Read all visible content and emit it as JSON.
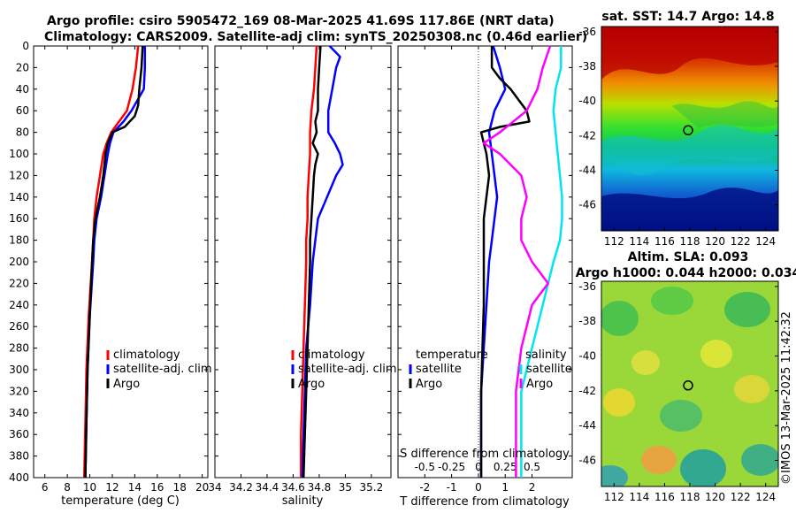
{
  "header": {
    "title_line1": "Argo profile: csiro 5905472_169 08-Mar-2025 41.69S 117.86E (NRT data)",
    "title_line2": "Climatology: CARS2009. Satellite-adj clim: synTS_20250308.nc (0.46d earlier)"
  },
  "colors": {
    "climatology": "#ff0000",
    "satellite": "#0000ff",
    "argo": "#000000",
    "sat_salinity": "#00e5f0",
    "argo_salinity": "#ff00ff"
  },
  "chart_data": [
    {
      "type": "line",
      "name": "temperature-panel",
      "xlabel": "temperature (deg C)",
      "ylabel": "",
      "xlim": [
        5,
        20.5
      ],
      "ylim": [
        400,
        0
      ],
      "xticks": [
        6,
        8,
        10,
        12,
        14,
        16,
        18,
        20
      ],
      "yticks": [
        0,
        20,
        40,
        60,
        80,
        100,
        120,
        140,
        160,
        180,
        200,
        220,
        240,
        260,
        280,
        300,
        320,
        340,
        360,
        380,
        400
      ],
      "legend": [
        "climatology",
        "satellite-adj. clim",
        "Argo"
      ],
      "series": [
        {
          "name": "climatology",
          "color": "#ff0000",
          "depth": [
            0,
            20,
            40,
            60,
            70,
            80,
            90,
            100,
            120,
            140,
            160,
            180,
            200,
            250,
            300,
            350,
            400
          ],
          "values": [
            14.3,
            14.1,
            13.8,
            13.3,
            12.6,
            11.9,
            11.5,
            11.2,
            10.9,
            10.6,
            10.4,
            10.3,
            10.2,
            9.9,
            9.7,
            9.6,
            9.5
          ]
        },
        {
          "name": "satellite-adj. clim",
          "color": "#0000ff",
          "depth": [
            0,
            20,
            40,
            60,
            70,
            80,
            90,
            100,
            120,
            140,
            160,
            180,
            200,
            250,
            300,
            350,
            400
          ],
          "values": [
            14.9,
            14.9,
            14.8,
            13.7,
            13.0,
            12.1,
            11.8,
            11.6,
            11.3,
            11.0,
            10.6,
            10.4,
            10.3,
            10.0,
            9.8,
            9.7,
            9.6
          ]
        },
        {
          "name": "Argo",
          "color": "#000000",
          "depth": [
            0,
            20,
            40,
            55,
            65,
            75,
            80,
            90,
            100,
            110,
            120,
            140,
            160,
            180,
            200,
            250,
            300,
            350,
            400
          ],
          "values": [
            14.7,
            14.6,
            14.4,
            14.3,
            14.0,
            13.1,
            12.0,
            11.6,
            11.4,
            11.3,
            11.2,
            10.9,
            10.5,
            10.3,
            10.2,
            10.0,
            9.8,
            9.7,
            9.6
          ]
        }
      ]
    },
    {
      "type": "line",
      "name": "salinity-panel",
      "xlabel": "salinity",
      "ylabel": "",
      "xlim": [
        34.0,
        35.35
      ],
      "ylim": [
        400,
        0
      ],
      "xticks": [
        34,
        34.2,
        34.4,
        34.6,
        34.8,
        35,
        35.2
      ],
      "legend": [
        "climatology",
        "satellite-adj. clim",
        "Argo"
      ],
      "series": [
        {
          "name": "climatology",
          "color": "#ff0000",
          "depth": [
            0,
            20,
            40,
            60,
            80,
            100,
            120,
            140,
            160,
            180,
            200,
            240,
            280,
            320,
            360,
            400
          ],
          "values": [
            34.78,
            34.77,
            34.76,
            34.74,
            34.73,
            34.73,
            34.72,
            34.71,
            34.71,
            34.7,
            34.7,
            34.69,
            34.68,
            34.67,
            34.66,
            34.66
          ]
        },
        {
          "name": "satellite-adj. clim",
          "color": "#0000ff",
          "depth": [
            0,
            10,
            20,
            40,
            60,
            80,
            90,
            100,
            110,
            120,
            140,
            160,
            180,
            200,
            240,
            280,
            320,
            360,
            400
          ],
          "values": [
            34.88,
            34.96,
            34.93,
            34.9,
            34.87,
            34.87,
            34.92,
            34.96,
            34.98,
            34.93,
            34.86,
            34.79,
            34.77,
            34.75,
            34.73,
            34.7,
            34.69,
            34.68,
            34.67
          ]
        },
        {
          "name": "Argo",
          "color": "#000000",
          "depth": [
            0,
            20,
            40,
            60,
            70,
            80,
            90,
            100,
            110,
            120,
            140,
            160,
            180,
            200,
            240,
            280,
            320,
            360,
            400
          ],
          "values": [
            34.81,
            34.8,
            34.79,
            34.79,
            34.77,
            34.78,
            34.75,
            34.79,
            34.77,
            34.76,
            34.75,
            34.74,
            34.73,
            34.73,
            34.72,
            34.71,
            34.7,
            34.69,
            34.68
          ]
        }
      ]
    },
    {
      "type": "line",
      "name": "difference-panel",
      "xlabel": "T difference from climatology",
      "xlabel2": "S difference from climatology",
      "xlim": [
        -3,
        3.5
      ],
      "ylim": [
        400,
        0
      ],
      "xticks": [
        -2,
        -1,
        0,
        1,
        2
      ],
      "xticks2": [
        "-0.5",
        "-0.25",
        "0",
        "0.25",
        "0.5"
      ],
      "legend_left_title": "temperature",
      "legend_right_title": "salinity",
      "legend": [
        "satellite",
        "Argo",
        "satellite",
        "Argo"
      ],
      "series": [
        {
          "name": "T satellite",
          "color": "#0000ff",
          "depth": [
            0,
            20,
            40,
            60,
            80,
            100,
            120,
            140,
            160,
            180,
            200,
            240,
            280,
            320,
            360,
            400
          ],
          "values": [
            0.55,
            0.8,
            1.0,
            0.6,
            0.4,
            0.5,
            0.6,
            0.7,
            0.6,
            0.5,
            0.4,
            0.3,
            0.2,
            0.1,
            0.1,
            0.1
          ]
        },
        {
          "name": "T Argo",
          "color": "#000000",
          "depth": [
            0,
            20,
            30,
            40,
            50,
            60,
            70,
            75,
            80,
            90,
            100,
            120,
            140,
            160,
            180,
            200,
            240,
            280,
            320,
            360,
            400
          ],
          "values": [
            0.5,
            0.5,
            0.8,
            1.2,
            1.5,
            1.8,
            1.9,
            0.8,
            0.1,
            0.2,
            0.3,
            0.4,
            0.3,
            0.2,
            0.2,
            0.2,
            0.2,
            0.15,
            0.1,
            0.1,
            0.1
          ]
        },
        {
          "name": "S satellite",
          "color": "#00e5f0",
          "depth": [
            0,
            20,
            40,
            60,
            80,
            100,
            120,
            140,
            160,
            180,
            200,
            240,
            280,
            320,
            360,
            400
          ],
          "values": [
            0.77,
            0.77,
            0.72,
            0.7,
            0.72,
            0.74,
            0.76,
            0.78,
            0.78,
            0.76,
            0.7,
            0.6,
            0.5,
            0.4,
            0.4,
            0.4
          ]
        },
        {
          "name": "S Argo",
          "color": "#ff00ff",
          "depth": [
            0,
            20,
            40,
            60,
            80,
            90,
            100,
            120,
            140,
            160,
            180,
            200,
            220,
            240,
            280,
            320,
            360,
            400
          ],
          "values": [
            0.67,
            0.6,
            0.55,
            0.45,
            0.2,
            0.05,
            0.2,
            0.4,
            0.45,
            0.4,
            0.4,
            0.5,
            0.65,
            0.5,
            0.4,
            0.35,
            0.35,
            0.35
          ]
        }
      ]
    },
    {
      "type": "heatmap",
      "name": "sst-map",
      "title": "sat. SST: 14.7  Argo: 14.8",
      "xlim": [
        111,
        125
      ],
      "ylim": [
        -47.5,
        -35.7
      ],
      "xticks": [
        112,
        114,
        116,
        118,
        120,
        122,
        124
      ],
      "yticks": [
        -36,
        -38,
        -40,
        -42,
        -44,
        -46
      ],
      "marker": {
        "lon": 117.86,
        "lat": -41.69
      }
    },
    {
      "type": "heatmap",
      "name": "sla-map",
      "title": "Altim. SLA: 0.093",
      "subtitle": "Argo h1000: 0.044 h2000: 0.034",
      "xlim": [
        111,
        125
      ],
      "ylim": [
        -47.5,
        -35.7
      ],
      "xticks": [
        112,
        114,
        116,
        118,
        120,
        122,
        124
      ],
      "yticks": [
        -36,
        -38,
        -40,
        -42,
        -44,
        -46
      ],
      "marker": {
        "lon": 117.86,
        "lat": -41.69
      }
    }
  ],
  "footer": {
    "credit": "©IMOS 13-Mar-2025 11:42:32"
  }
}
